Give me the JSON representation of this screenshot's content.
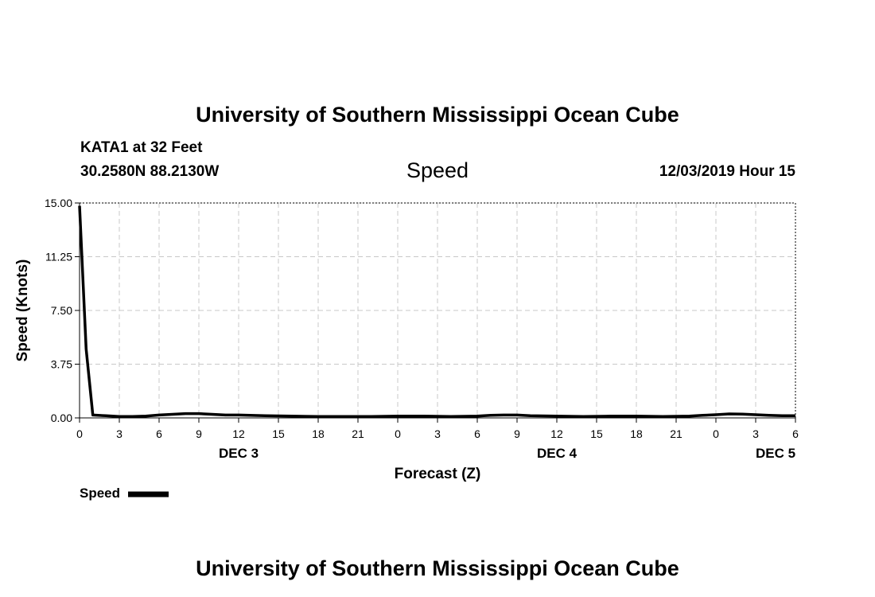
{
  "header": {
    "title": "University of Southern Mississippi Ocean Cube",
    "station_line": "KATA1 at 32 Feet",
    "coords_line": "30.2580N 88.2130W",
    "chart_name": "Speed",
    "timestamp": "12/03/2019 Hour 15"
  },
  "footer": {
    "title": "University of Southern Mississippi Ocean Cube"
  },
  "legend": {
    "label": "Speed",
    "placement": "bottom-left"
  },
  "colors": {
    "line": "#000000",
    "grid": "#c8c8c8",
    "background": "#ffffff"
  },
  "chart_data": {
    "type": "line",
    "title": "Speed",
    "xlabel": "Forecast (Z)",
    "ylabel": "Speed (Knots)",
    "xlim": [
      0,
      54
    ],
    "ylim": [
      0,
      15
    ],
    "grid": true,
    "y_ticks": [
      0,
      3.75,
      7.5,
      11.25,
      15
    ],
    "y_tick_labels": [
      "0.00",
      "3.75",
      "7.50",
      "11.25",
      "15.00"
    ],
    "x_ticks": [
      0,
      3,
      6,
      9,
      12,
      15,
      18,
      21,
      24,
      27,
      30,
      33,
      36,
      39,
      42,
      45,
      48,
      51,
      54
    ],
    "x_tick_labels": [
      "0",
      "3",
      "6",
      "9",
      "12",
      "15",
      "18",
      "21",
      "0",
      "3",
      "6",
      "9",
      "12",
      "15",
      "18",
      "21",
      "0",
      "3",
      "6"
    ],
    "day_labels": [
      {
        "hour": 12,
        "label": "DEC 3"
      },
      {
        "hour": 36,
        "label": "DEC 4"
      },
      {
        "hour": 52.5,
        "label": "DEC 5"
      }
    ],
    "series": [
      {
        "name": "Speed",
        "x": [
          0,
          0.5,
          1,
          2,
          3,
          4,
          5,
          6,
          7,
          8,
          9,
          10,
          11,
          12,
          14,
          16,
          18,
          20,
          22,
          24,
          26,
          28,
          30,
          31,
          32,
          33,
          34,
          36,
          38,
          40,
          42,
          44,
          46,
          47,
          48,
          49,
          50,
          51,
          52,
          53,
          54
        ],
        "values": [
          14.8,
          4.8,
          0.2,
          0.15,
          0.1,
          0.1,
          0.12,
          0.2,
          0.25,
          0.3,
          0.3,
          0.25,
          0.2,
          0.2,
          0.15,
          0.12,
          0.1,
          0.1,
          0.1,
          0.12,
          0.12,
          0.1,
          0.12,
          0.18,
          0.2,
          0.2,
          0.15,
          0.12,
          0.1,
          0.12,
          0.12,
          0.1,
          0.12,
          0.18,
          0.22,
          0.28,
          0.26,
          0.22,
          0.18,
          0.15,
          0.15
        ]
      }
    ]
  }
}
